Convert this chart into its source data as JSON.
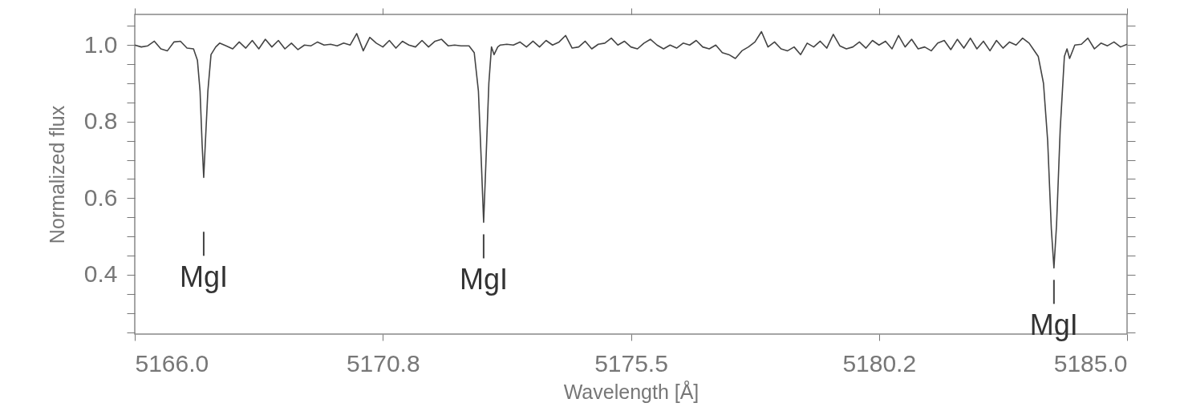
{
  "chart_data": {
    "type": "line",
    "xlabel": "Wavelength [Å]",
    "ylabel": "Normalized flux",
    "xlim": [
      5166.0,
      5185.0
    ],
    "xticks": [
      {
        "value": 5166,
        "label": "5166.0"
      },
      {
        "value": 5170.75,
        "label": "5170.8"
      },
      5175.5,
      {
        "value": 5180.25,
        "label": "5180.2"
      },
      {
        "value": 5185,
        "label": "5185.0"
      }
    ],
    "ylim": [
      0.245,
      1.08
    ],
    "yticks": [
      {
        "value": 0.25,
        "label": null
      },
      {
        "value": 0.3,
        "label": null
      },
      {
        "value": 0.35,
        "label": null
      },
      0.4,
      {
        "value": 0.45,
        "label": null
      },
      {
        "value": 0.5,
        "label": null
      },
      {
        "value": 0.55,
        "label": null
      },
      0.6,
      {
        "value": 0.65,
        "label": null
      },
      {
        "value": 0.7,
        "label": null
      },
      {
        "value": 0.75,
        "label": null
      },
      0.8,
      {
        "value": 0.85,
        "label": null
      },
      {
        "value": 0.9,
        "label": null
      },
      {
        "value": 0.95,
        "label": null
      },
      {
        "value": 1,
        "label": "1.0"
      },
      {
        "value": 1.05,
        "label": null
      }
    ],
    "grid": false,
    "marker": "none",
    "line_style": "solid",
    "annotations": [
      {
        "text": "MgI",
        "x": 5167.32,
        "y": 0.654
      },
      {
        "text": "MgI",
        "x": 5172.68,
        "y": 0.537
      },
      {
        "text": "MgI",
        "x": 5183.6,
        "y": 0.418
      }
    ],
    "series": [
      {
        "color": "#444444",
        "x": [
          5166.0,
          5166.125,
          5166.25,
          5166.375,
          5166.5,
          5166.625,
          5166.75,
          5166.875,
          5167.0,
          5167.125,
          5167.2,
          5167.25,
          5167.29,
          5167.32,
          5167.35,
          5167.4,
          5167.46,
          5167.55,
          5167.625,
          5167.75,
          5167.875,
          5168.0,
          5168.125,
          5168.25,
          5168.375,
          5168.5,
          5168.625,
          5168.75,
          5168.875,
          5169.0,
          5169.125,
          5169.25,
          5169.375,
          5169.5,
          5169.625,
          5169.75,
          5169.875,
          5170.0,
          5170.125,
          5170.25,
          5170.375,
          5170.5,
          5170.625,
          5170.75,
          5170.875,
          5171.0,
          5171.125,
          5171.25,
          5171.375,
          5171.5,
          5171.625,
          5171.75,
          5171.875,
          5172.0,
          5172.125,
          5172.25,
          5172.4,
          5172.5,
          5172.58,
          5172.64,
          5172.68,
          5172.72,
          5172.78,
          5172.83,
          5172.88,
          5172.95,
          5173.0,
          5173.125,
          5173.25,
          5173.375,
          5173.5,
          5173.625,
          5173.75,
          5173.875,
          5174.0,
          5174.125,
          5174.25,
          5174.375,
          5174.5,
          5174.625,
          5174.75,
          5174.875,
          5175.0,
          5175.125,
          5175.25,
          5175.375,
          5175.5,
          5175.625,
          5175.75,
          5175.875,
          5176.0,
          5176.125,
          5176.25,
          5176.375,
          5176.5,
          5176.625,
          5176.75,
          5176.875,
          5177.0,
          5177.125,
          5177.25,
          5177.375,
          5177.5,
          5177.625,
          5177.75,
          5177.875,
          5178.0,
          5178.125,
          5178.25,
          5178.375,
          5178.5,
          5178.625,
          5178.75,
          5178.875,
          5179.0,
          5179.125,
          5179.25,
          5179.375,
          5179.5,
          5179.625,
          5179.75,
          5179.875,
          5180.0,
          5180.125,
          5180.25,
          5180.375,
          5180.5,
          5180.625,
          5180.75,
          5180.875,
          5181.0,
          5181.125,
          5181.25,
          5181.375,
          5181.5,
          5181.625,
          5181.75,
          5181.875,
          5182.0,
          5182.125,
          5182.25,
          5182.375,
          5182.5,
          5182.625,
          5182.75,
          5182.875,
          5183.0,
          5183.125,
          5183.2,
          5183.3,
          5183.4,
          5183.48,
          5183.55,
          5183.6,
          5183.65,
          5183.72,
          5183.8,
          5183.85,
          5183.9,
          5184.0,
          5184.125,
          5184.25,
          5184.375,
          5184.5,
          5184.625,
          5184.75,
          5184.875,
          5185.0
        ],
        "values": [
          1.0,
          0.995,
          0.998,
          1.01,
          0.99,
          0.985,
          1.008,
          1.01,
          0.992,
          0.99,
          0.96,
          0.88,
          0.74,
          0.654,
          0.74,
          0.88,
          0.975,
          0.995,
          1.005,
          0.998,
          0.99,
          1.008,
          0.992,
          1.012,
          0.99,
          1.015,
          0.995,
          1.012,
          0.99,
          1.005,
          0.988,
          1.0,
          0.998,
          1.008,
          1.0,
          1.002,
          0.998,
          1.005,
          1.0,
          1.03,
          0.985,
          1.02,
          1.005,
          0.995,
          1.012,
          0.992,
          1.01,
          1.0,
          0.995,
          1.012,
          0.995,
          1.01,
          1.015,
          0.998,
          1.0,
          0.998,
          0.998,
          0.98,
          0.88,
          0.68,
          0.537,
          0.68,
          0.9,
          0.995,
          0.975,
          0.995,
          1.0,
          1.002,
          1.0,
          1.008,
          0.995,
          1.01,
          0.995,
          1.012,
          1.0,
          1.008,
          1.025,
          0.992,
          0.995,
          1.01,
          0.99,
          1.002,
          1.005,
          1.018,
          1.0,
          1.01,
          0.995,
          0.99,
          1.005,
          1.015,
          1.0,
          0.99,
          1.0,
          0.992,
          1.005,
          1.0,
          1.012,
          0.995,
          0.99,
          1.0,
          0.98,
          0.975,
          0.965,
          0.985,
          0.995,
          1.008,
          1.035,
          0.995,
          1.008,
          0.99,
          0.985,
          0.995,
          0.975,
          1.005,
          0.995,
          1.01,
          0.992,
          1.028,
          0.998,
          0.99,
          0.995,
          1.008,
          0.992,
          1.012,
          1.0,
          1.01,
          0.99,
          1.025,
          0.995,
          1.015,
          0.99,
          0.995,
          0.985,
          1.005,
          1.012,
          0.988,
          1.015,
          0.992,
          1.018,
          0.99,
          1.01,
          0.985,
          1.012,
          0.992,
          1.008,
          1.0,
          1.018,
          1.005,
          0.99,
          0.97,
          0.9,
          0.75,
          0.52,
          0.418,
          0.53,
          0.78,
          0.97,
          0.99,
          0.965,
          1.0,
          1.002,
          1.018,
          0.99,
          1.005,
          0.998,
          1.008,
          0.995,
          1.002
        ]
      }
    ]
  }
}
